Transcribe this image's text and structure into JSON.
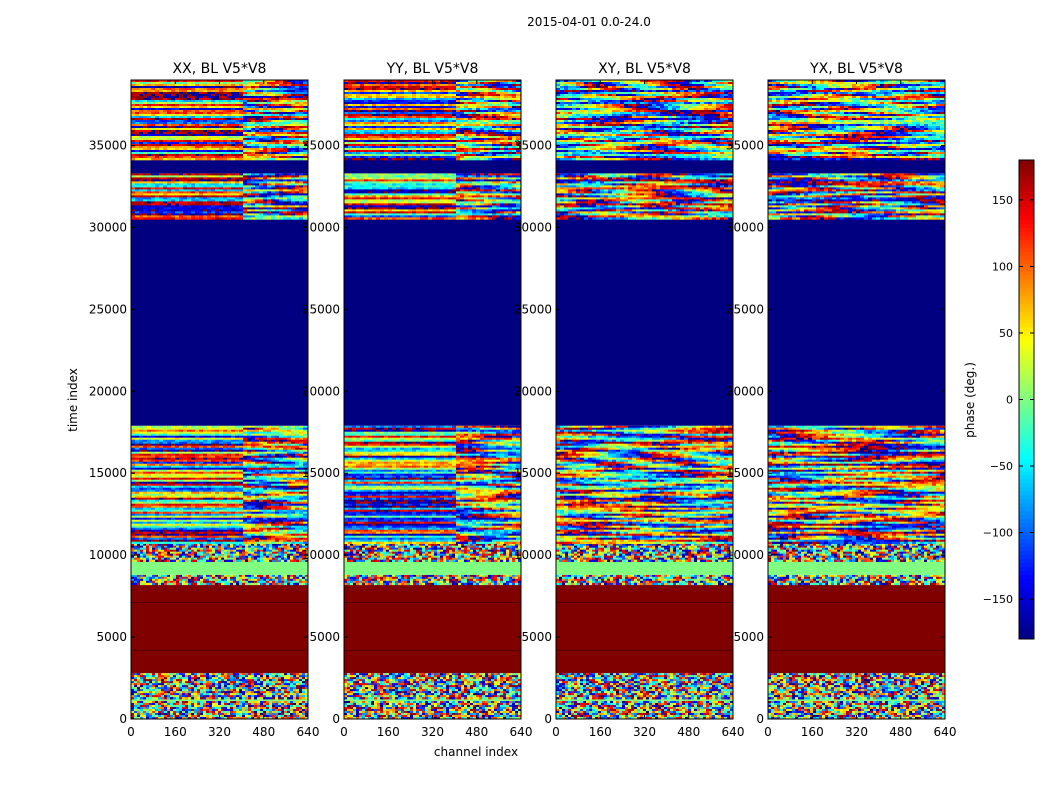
{
  "chart_data": {
    "type": "heatmap",
    "suptitle": "2015-04-01 0.0-24.0",
    "xlabel": "channel index",
    "ylabel": "time index",
    "xlim": [
      0,
      640
    ],
    "ylim": [
      0,
      39000
    ],
    "xticks": [
      0,
      160,
      320,
      480,
      640
    ],
    "yticks": [
      0,
      5000,
      10000,
      15000,
      20000,
      25000,
      30000,
      35000
    ],
    "colorbar": {
      "label": "phase (deg.)",
      "range": [
        -180,
        180
      ],
      "ticks": [
        -150,
        -100,
        -50,
        0,
        50,
        100,
        150
      ],
      "colormap": "jet"
    },
    "panels": [
      {
        "title": "XX, BL V5*V8"
      },
      {
        "title": "YY, BL V5*V8"
      },
      {
        "title": "XY, BL V5*V8"
      },
      {
        "title": "YX, BL V5*V8"
      }
    ],
    "bands": [
      {
        "y0": 0,
        "y1": 1100,
        "kind": "noise"
      },
      {
        "y0": 1100,
        "y1": 1300,
        "kind": "uniform",
        "value": 0
      },
      {
        "y0": 1300,
        "y1": 2800,
        "kind": "noise"
      },
      {
        "y0": 2800,
        "y1": 8300,
        "kind": "uniform",
        "value": 180
      },
      {
        "y0": 8300,
        "y1": 8800,
        "kind": "noise"
      },
      {
        "y0": 8800,
        "y1": 9700,
        "kind": "uniform",
        "value": 0
      },
      {
        "y0": 9700,
        "y1": 10700,
        "kind": "noise"
      },
      {
        "y0": 10700,
        "y1": 17900,
        "kind": "structured"
      },
      {
        "y0": 17900,
        "y1": 30500,
        "kind": "uniform",
        "value": -180
      },
      {
        "y0": 30500,
        "y1": 33300,
        "kind": "structured"
      },
      {
        "y0": 33300,
        "y1": 34200,
        "kind": "uniform",
        "value": -180
      },
      {
        "y0": 34200,
        "y1": 39000,
        "kind": "structured"
      }
    ]
  }
}
